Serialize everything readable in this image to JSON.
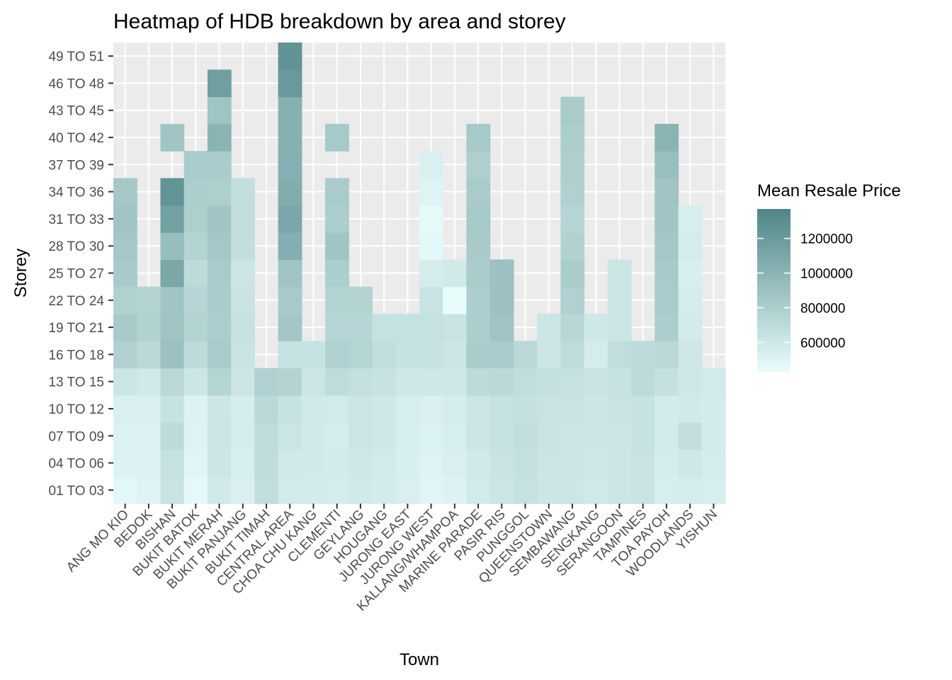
{
  "chart_data": {
    "type": "heatmap",
    "title": "Heatmap of HDB breakdown by area and storey",
    "xlabel": "Town",
    "ylabel": "Storey",
    "grid": true,
    "legend_position": "right",
    "legend": {
      "title": "Mean Resale Price",
      "ticks": [
        600000,
        800000,
        1000000,
        1200000
      ],
      "tick_labels": [
        "600000",
        "800000",
        "1000000",
        "1200000"
      ],
      "min": 430000,
      "max": 1370000,
      "color_low": "#eafdfd",
      "color_high": "#4f8586"
    },
    "towns": [
      "ANG MO KIO",
      "BEDOK",
      "BISHAN",
      "BUKIT BATOK",
      "BUKIT MERAH",
      "BUKIT PANJANG",
      "BUKIT TIMAH",
      "CENTRAL AREA",
      "CHOA CHU KANG",
      "CLEMENTI",
      "GEYLANG",
      "HOUGANG",
      "JURONG EAST",
      "JURONG WEST",
      "KALLANG/WHAMPOA",
      "MARINE PARADE",
      "PASIR RIS",
      "PUNGGOL",
      "QUEENSTOWN",
      "SEMBAWANG",
      "SENGKANG",
      "SERANGOON",
      "TAMPINES",
      "TOA PAYOH",
      "WOODLANDS",
      "YISHUN"
    ],
    "storeys": [
      "01 TO 03",
      "04 TO 06",
      "07 TO 09",
      "10 TO 12",
      "13 TO 15",
      "16 TO 18",
      "19 TO 21",
      "22 TO 24",
      "25 TO 27",
      "28 TO 30",
      "31 TO 33",
      "34 TO 36",
      "37 TO 39",
      "40 TO 42",
      "43 TO 45",
      "46 TO 48",
      "49 TO 51"
    ],
    "values": [
      [
        480000,
        510000,
        520000,
        530000,
        620000,
        780000,
        830000,
        770000,
        830000,
        850000,
        870000,
        850000,
        null,
        null,
        null,
        null,
        null
      ],
      [
        500000,
        510000,
        510000,
        530000,
        590000,
        710000,
        770000,
        760000,
        null,
        null,
        null,
        null,
        null,
        null,
        null,
        null,
        null
      ],
      [
        630000,
        650000,
        700000,
        640000,
        720000,
        900000,
        880000,
        870000,
        1100000,
        930000,
        1150000,
        1250000,
        null,
        870000,
        null,
        null,
        null
      ],
      [
        460000,
        490000,
        500000,
        510000,
        610000,
        700000,
        760000,
        740000,
        700000,
        760000,
        790000,
        800000,
        820000,
        null,
        null,
        null,
        null
      ],
      [
        590000,
        610000,
        620000,
        610000,
        750000,
        820000,
        800000,
        810000,
        820000,
        850000,
        870000,
        790000,
        810000,
        1010000,
        880000,
        1170000,
        null
      ],
      [
        530000,
        540000,
        560000,
        560000,
        620000,
        630000,
        650000,
        630000,
        620000,
        670000,
        680000,
        670000,
        null,
        null,
        null,
        null,
        null
      ],
      [
        680000,
        690000,
        690000,
        720000,
        780000,
        null,
        null,
        null,
        null,
        null,
        null,
        null,
        null,
        null,
        null,
        null,
        null
      ],
      [
        580000,
        590000,
        620000,
        640000,
        760000,
        650000,
        860000,
        830000,
        870000,
        1050000,
        1100000,
        1060000,
        1040000,
        1030000,
        1030000,
        1210000,
        1260000
      ],
      [
        570000,
        590000,
        590000,
        590000,
        610000,
        640000,
        null,
        null,
        null,
        null,
        null,
        null,
        null,
        null,
        null,
        null,
        null
      ],
      [
        560000,
        570000,
        560000,
        580000,
        690000,
        780000,
        740000,
        760000,
        800000,
        870000,
        800000,
        820000,
        null,
        840000,
        null,
        null,
        null
      ],
      [
        590000,
        600000,
        620000,
        620000,
        660000,
        750000,
        740000,
        760000,
        null,
        null,
        null,
        null,
        null,
        null,
        null,
        null,
        null
      ],
      [
        570000,
        580000,
        600000,
        600000,
        640000,
        680000,
        650000,
        null,
        null,
        null,
        null,
        null,
        null,
        null,
        null,
        null,
        null
      ],
      [
        530000,
        540000,
        550000,
        550000,
        600000,
        650000,
        650000,
        null,
        null,
        null,
        null,
        null,
        null,
        null,
        null,
        null,
        null
      ],
      [
        490000,
        500000,
        520000,
        530000,
        600000,
        640000,
        650000,
        630000,
        560000,
        470000,
        460000,
        500000,
        530000,
        null,
        null,
        null,
        null
      ],
      [
        510000,
        530000,
        550000,
        560000,
        600000,
        610000,
        630000,
        440000,
        590000,
        null,
        null,
        null,
        null,
        null,
        null,
        null,
        null
      ],
      [
        580000,
        590000,
        610000,
        610000,
        700000,
        810000,
        800000,
        800000,
        810000,
        830000,
        840000,
        820000,
        790000,
        840000,
        null,
        null,
        null
      ],
      [
        620000,
        630000,
        640000,
        650000,
        710000,
        820000,
        880000,
        900000,
        900000,
        null,
        null,
        null,
        null,
        null,
        null,
        null,
        null
      ],
      [
        650000,
        660000,
        680000,
        660000,
        680000,
        720000,
        null,
        null,
        null,
        null,
        null,
        null,
        null,
        null,
        null,
        null,
        null
      ],
      [
        610000,
        620000,
        630000,
        630000,
        660000,
        620000,
        620000,
        null,
        null,
        null,
        null,
        null,
        null,
        null,
        null,
        null,
        null
      ],
      [
        610000,
        620000,
        620000,
        630000,
        650000,
        690000,
        730000,
        780000,
        810000,
        770000,
        740000,
        780000,
        790000,
        800000,
        820000,
        null,
        null
      ],
      [
        590000,
        600000,
        610000,
        610000,
        630000,
        560000,
        600000,
        null,
        null,
        null,
        null,
        null,
        null,
        null,
        null,
        null,
        null
      ],
      [
        620000,
        620000,
        620000,
        630000,
        640000,
        680000,
        620000,
        620000,
        620000,
        null,
        null,
        null,
        null,
        null,
        null,
        null,
        null
      ],
      [
        630000,
        630000,
        640000,
        640000,
        700000,
        700000,
        null,
        null,
        null,
        null,
        null,
        null,
        null,
        null,
        null,
        null,
        null
      ],
      [
        550000,
        560000,
        570000,
        570000,
        660000,
        720000,
        800000,
        820000,
        830000,
        850000,
        870000,
        880000,
        920000,
        1010000,
        null,
        null,
        null
      ],
      [
        560000,
        600000,
        670000,
        590000,
        600000,
        600000,
        570000,
        560000,
        540000,
        560000,
        550000,
        null,
        null,
        null,
        null,
        null,
        null
      ],
      [
        550000,
        560000,
        570000,
        570000,
        580000,
        null,
        null,
        null,
        null,
        null,
        null,
        null,
        null,
        null,
        null,
        null,
        null
      ]
    ]
  }
}
